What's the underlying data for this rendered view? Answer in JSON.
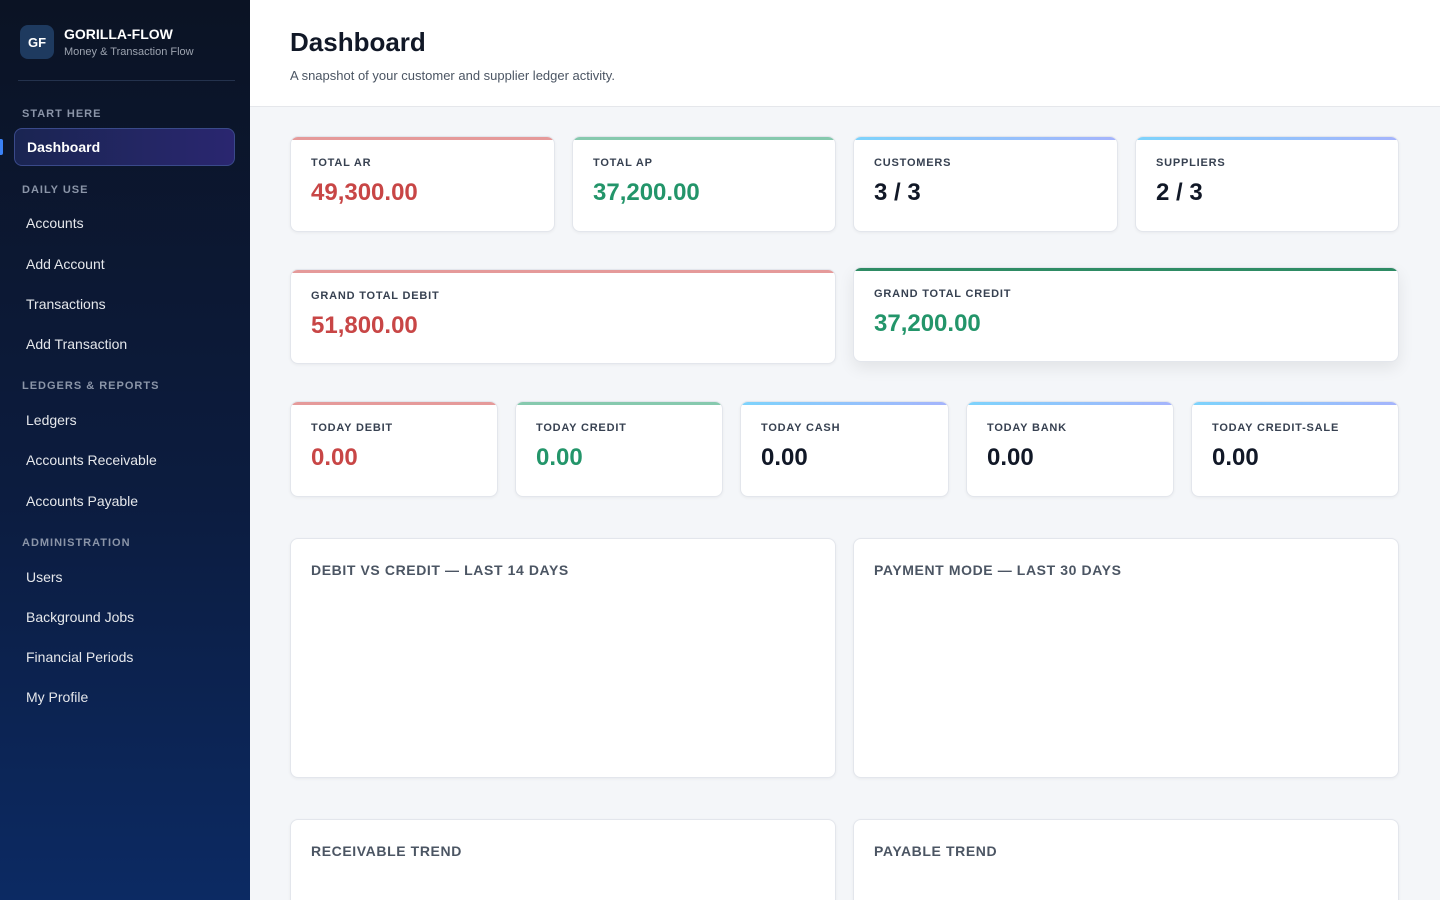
{
  "brand": {
    "logo": "GF",
    "name": "GORILLA-FLOW",
    "tagline": "Money & Transaction Flow"
  },
  "sidebar": {
    "sections": [
      {
        "label": "START HERE",
        "items": [
          {
            "label": "Dashboard",
            "active": true
          }
        ]
      },
      {
        "label": "DAILY USE",
        "items": [
          {
            "label": "Accounts"
          },
          {
            "label": "Add Account"
          },
          {
            "label": "Transactions"
          },
          {
            "label": "Add Transaction"
          }
        ]
      },
      {
        "label": "LEDGERS & REPORTS",
        "items": [
          {
            "label": "Ledgers"
          },
          {
            "label": "Accounts Receivable"
          },
          {
            "label": "Accounts Payable"
          }
        ]
      },
      {
        "label": "ADMINISTRATION",
        "items": [
          {
            "label": "Users"
          },
          {
            "label": "Background Jobs"
          },
          {
            "label": "Financial Periods"
          },
          {
            "label": "My Profile"
          }
        ]
      }
    ]
  },
  "header": {
    "title": "Dashboard",
    "subtitle": "A snapshot of your customer and supplier ledger activity."
  },
  "stats_row1": [
    {
      "label": "TOTAL AR",
      "value": "49,300.00"
    },
    {
      "label": "TOTAL AP",
      "value": "37,200.00"
    },
    {
      "label": "CUSTOMERS",
      "value": "3 / 3"
    },
    {
      "label": "SUPPLIERS",
      "value": "2 / 3"
    }
  ],
  "stats_row2": [
    {
      "label": "GRAND TOTAL DEBIT",
      "value": "51,800.00"
    },
    {
      "label": "GRAND TOTAL CREDIT",
      "value": "37,200.00"
    }
  ],
  "stats_row3": [
    {
      "label": "TODAY DEBIT",
      "value": "0.00"
    },
    {
      "label": "TODAY CREDIT",
      "value": "0.00"
    },
    {
      "label": "TODAY CASH",
      "value": "0.00"
    },
    {
      "label": "TODAY BANK",
      "value": "0.00"
    },
    {
      "label": "TODAY CREDIT-SALE",
      "value": "0.00"
    }
  ],
  "charts": [
    {
      "title": "DEBIT VS CREDIT — LAST 14 DAYS"
    },
    {
      "title": "PAYMENT MODE — LAST 30 DAYS"
    },
    {
      "title": "RECEIVABLE TREND"
    },
    {
      "title": "PAYABLE TREND"
    }
  ],
  "colors": {
    "debit": "#c84646",
    "credit": "#23956a",
    "sidebar": "#0c1c3f",
    "accent": "#3b82f6"
  }
}
